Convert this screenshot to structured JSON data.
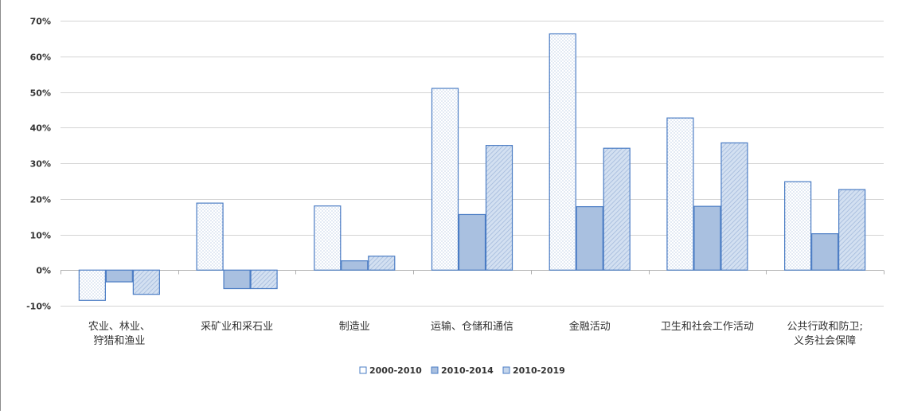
{
  "chart_data": {
    "type": "bar",
    "categories": [
      [
        "农业、林业、",
        "狩猎和渔业"
      ],
      [
        "采矿业和采石业"
      ],
      [
        "制造业"
      ],
      [
        "运输、仓储和通信"
      ],
      [
        "金融活动"
      ],
      [
        "卫生和社会工作活动"
      ],
      [
        "公共行政和防卫;",
        "义务社会保障"
      ]
    ],
    "series": [
      {
        "name": "2000-2010",
        "values": [
          -8.5,
          18.8,
          18.0,
          51.0,
          66.3,
          42.7,
          24.8
        ],
        "color": "#ffffff",
        "pattern": "dots"
      },
      {
        "name": "2010-2014",
        "values": [
          -3.3,
          -5.2,
          2.6,
          15.6,
          17.8,
          17.9,
          10.2
        ],
        "color": "#a9c0e0",
        "pattern": "solid"
      },
      {
        "name": "2010-2019",
        "values": [
          -6.8,
          -5.2,
          3.9,
          35.0,
          34.2,
          35.7,
          22.6
        ],
        "color": "#c5d6ec",
        "pattern": "hatch"
      }
    ],
    "ylim": [
      -10,
      70
    ],
    "yticks": [
      -10,
      0,
      10,
      20,
      30,
      40,
      50,
      60,
      70
    ],
    "ytick_labels": [
      "-10%",
      "0%",
      "10%",
      "20%",
      "30%",
      "40%",
      "50%",
      "60%",
      "70%"
    ],
    "grid": true,
    "legend": "bottom-center",
    "bar_edge_color": "#4a7cc4"
  }
}
